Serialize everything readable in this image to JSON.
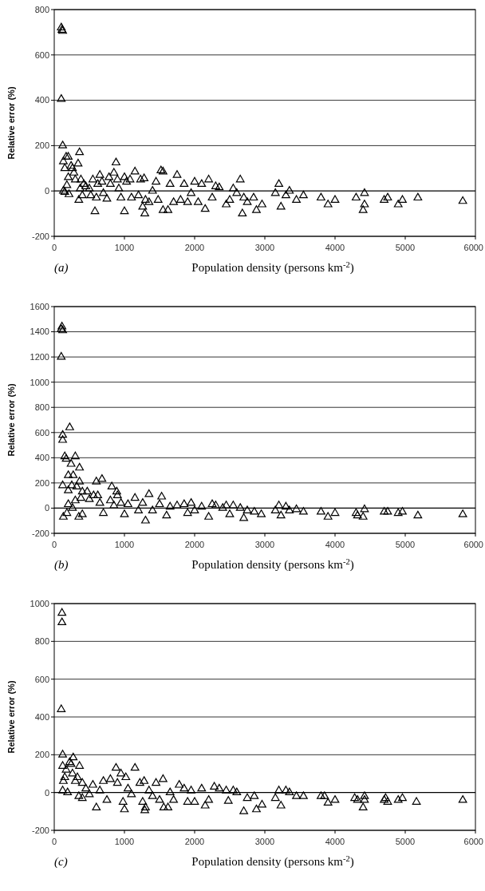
{
  "chart_data": [
    {
      "type": "scatter",
      "xlabel": "Population density (persons km$^{-2}$)",
      "ylabel": "Relative error (%)",
      "annotations": [
        "(a)"
      ],
      "xlim": [
        0,
        6000
      ],
      "xticks": [
        0,
        1000,
        2000,
        3000,
        4000,
        5000,
        6000
      ],
      "ylim": [
        -200,
        800
      ],
      "yticks": [
        -200,
        0,
        200,
        400,
        600,
        800
      ],
      "grid": "y",
      "marker": "triangle",
      "x": [
        100,
        110,
        120,
        100,
        120,
        130,
        150,
        170,
        200,
        180,
        130,
        150,
        210,
        200,
        240,
        260,
        280,
        300,
        340,
        360,
        350,
        370,
        380,
        400,
        420,
        450,
        500,
        520,
        550,
        580,
        600,
        620,
        650,
        680,
        700,
        750,
        780,
        800,
        850,
        880,
        900,
        920,
        950,
        1000,
        1000,
        1030,
        1080,
        1100,
        1150,
        1200,
        1230,
        1260,
        1280,
        1290,
        1300,
        1350,
        1400,
        1450,
        1480,
        1520,
        1550,
        1550,
        1620,
        1650,
        1700,
        1750,
        1800,
        1850,
        1900,
        1950,
        2000,
        2050,
        2100,
        2150,
        2200,
        2250,
        2300,
        2350,
        2450,
        2500,
        2550,
        2600,
        2650,
        2680,
        2700,
        2750,
        2840,
        2880,
        2960,
        3150,
        3200,
        3230,
        3300,
        3350,
        3450,
        3550,
        3800,
        3900,
        4000,
        4300,
        4420,
        4420,
        4400,
        4700,
        4750,
        4900,
        4960,
        5180,
        5820
      ],
      "series": [
        {
          "color": "#000000",
          "values": [
            720,
            710,
            705,
            405,
            200,
            130,
            100,
            150,
            150,
            25,
            0,
            -5,
            -15,
            60,
            110,
            100,
            80,
            50,
            120,
            170,
            -40,
            10,
            50,
            -20,
            30,
            20,
            10,
            -20,
            50,
            -90,
            -30,
            30,
            70,
            40,
            -10,
            -35,
            60,
            30,
            80,
            125,
            50,
            10,
            -30,
            -90,
            60,
            40,
            50,
            -30,
            85,
            -20,
            50,
            -70,
            55,
            -100,
            -40,
            -50,
            0,
            40,
            -40,
            90,
            85,
            -85,
            -85,
            30,
            -50,
            70,
            -40,
            30,
            -50,
            -10,
            40,
            -50,
            30,
            -80,
            50,
            -30,
            20,
            15,
            -60,
            -40,
            10,
            -10,
            50,
            -100,
            -30,
            -50,
            -30,
            -85,
            -60,
            -10,
            30,
            -70,
            -20,
            0,
            -40,
            -20,
            -30,
            -60,
            -40,
            -30,
            -10,
            -60,
            -85,
            -40,
            -30,
            -60,
            -40,
            -30,
            -45
          ]
        }
      ]
    },
    {
      "type": "scatter",
      "xlabel": "Population density (persons km$^{-2}$)",
      "ylabel": "Relative error (%)",
      "annotations": [
        "(b)"
      ],
      "xlim": [
        0,
        6000
      ],
      "xticks": [
        0,
        1000,
        2000,
        3000,
        4000,
        5000,
        6000
      ],
      "ylim": [
        -200,
        1600
      ],
      "yticks": [
        -200,
        0,
        200,
        400,
        600,
        800,
        1000,
        1200,
        1400,
        1600
      ],
      "grid": "y",
      "marker": "triangle",
      "x": [
        100,
        110,
        120,
        100,
        120,
        120,
        220,
        150,
        170,
        240,
        300,
        360,
        200,
        270,
        360,
        120,
        250,
        200,
        320,
        400,
        470,
        380,
        600,
        680,
        820,
        890,
        300,
        200,
        260,
        130,
        180,
        350,
        400,
        500,
        560,
        620,
        650,
        700,
        800,
        850,
        900,
        950,
        1000,
        1050,
        1150,
        1200,
        1260,
        1300,
        1350,
        1400,
        1500,
        1530,
        1600,
        1650,
        1750,
        1850,
        1900,
        1950,
        2000,
        2100,
        2200,
        2250,
        2300,
        2400,
        2450,
        2500,
        2550,
        2650,
        2700,
        2750,
        2850,
        2950,
        3150,
        3200,
        3230,
        3300,
        3350,
        3450,
        3550,
        3800,
        3900,
        4000,
        4300,
        4320,
        4420,
        4400,
        4700,
        4750,
        4900,
        4960,
        5180,
        5820
      ],
      "series": [
        {
          "color": "#000000",
          "values": [
            1420,
            1440,
            1410,
            1200,
            580,
            540,
            640,
            410,
            390,
            350,
            410,
            320,
            260,
            260,
            210,
            180,
            180,
            140,
            170,
            130,
            130,
            80,
            210,
            230,
            170,
            130,
            60,
            30,
            0,
            -70,
            -40,
            -70,
            -50,
            70,
            100,
            100,
            40,
            -40,
            60,
            20,
            100,
            40,
            -50,
            30,
            80,
            -20,
            40,
            -100,
            110,
            -20,
            30,
            90,
            -60,
            10,
            20,
            30,
            -40,
            40,
            -20,
            10,
            -70,
            30,
            20,
            0,
            20,
            -50,
            20,
            0,
            -80,
            -20,
            -30,
            -50,
            -20,
            20,
            -60,
            10,
            -20,
            -10,
            -30,
            -30,
            -70,
            -40,
            -40,
            -60,
            -10,
            -70,
            -30,
            -30,
            -40,
            -30,
            -60,
            -50
          ]
        }
      ]
    },
    {
      "type": "scatter",
      "xlabel": "Population density (persons km$^{-2}$)",
      "ylabel": "Relative error (%)",
      "annotations": [
        "(c)"
      ],
      "xlim": [
        0,
        6000
      ],
      "xticks": [
        0,
        1000,
        2000,
        3000,
        4000,
        5000,
        6000
      ],
      "ylim": [
        -200,
        1000
      ],
      "yticks": [
        -200,
        0,
        200,
        400,
        600,
        800,
        1000
      ],
      "grid": "y",
      "marker": "triangle",
      "x": [
        110,
        110,
        100,
        120,
        270,
        120,
        220,
        240,
        360,
        170,
        150,
        130,
        120,
        190,
        260,
        300,
        330,
        400,
        350,
        400,
        450,
        500,
        550,
        600,
        650,
        700,
        750,
        800,
        880,
        900,
        950,
        980,
        1000,
        1020,
        1050,
        1100,
        1150,
        1220,
        1260,
        1280,
        1290,
        1300,
        1350,
        1400,
        1450,
        1500,
        1550,
        1560,
        1620,
        1650,
        1700,
        1780,
        1850,
        1900,
        1950,
        2000,
        2100,
        2150,
        2200,
        2280,
        2350,
        2450,
        2480,
        2550,
        2600,
        2700,
        2750,
        2850,
        2880,
        2960,
        3150,
        3200,
        3230,
        3300,
        3350,
        3450,
        3550,
        3800,
        3850,
        3900,
        4000,
        4280,
        4320,
        4420,
        4420,
        4400,
        4700,
        4720,
        4750,
        4900,
        4960,
        5160,
        5820
      ],
      "series": [
        {
          "color": "#000000",
          "values": [
            950,
            900,
            440,
            200,
            185,
            140,
            160,
            150,
            140,
            120,
            80,
            60,
            10,
            0,
            100,
            60,
            80,
            50,
            -20,
            -30,
            20,
            -10,
            40,
            -80,
            10,
            60,
            -40,
            70,
            130,
            50,
            100,
            -50,
            -90,
            80,
            20,
            -10,
            130,
            50,
            -50,
            60,
            -95,
            -80,
            10,
            -20,
            50,
            -40,
            70,
            -80,
            -80,
            0,
            -40,
            40,
            20,
            -50,
            10,
            -50,
            20,
            -70,
            -40,
            30,
            20,
            10,
            -45,
            10,
            0,
            -100,
            -30,
            -20,
            -90,
            -65,
            -30,
            10,
            -70,
            10,
            0,
            -20,
            -20,
            -20,
            -20,
            -55,
            -40,
            -30,
            -40,
            -20,
            -40,
            -80,
            -40,
            -30,
            -50,
            -40,
            -30,
            -50,
            -40
          ]
        }
      ]
    }
  ]
}
